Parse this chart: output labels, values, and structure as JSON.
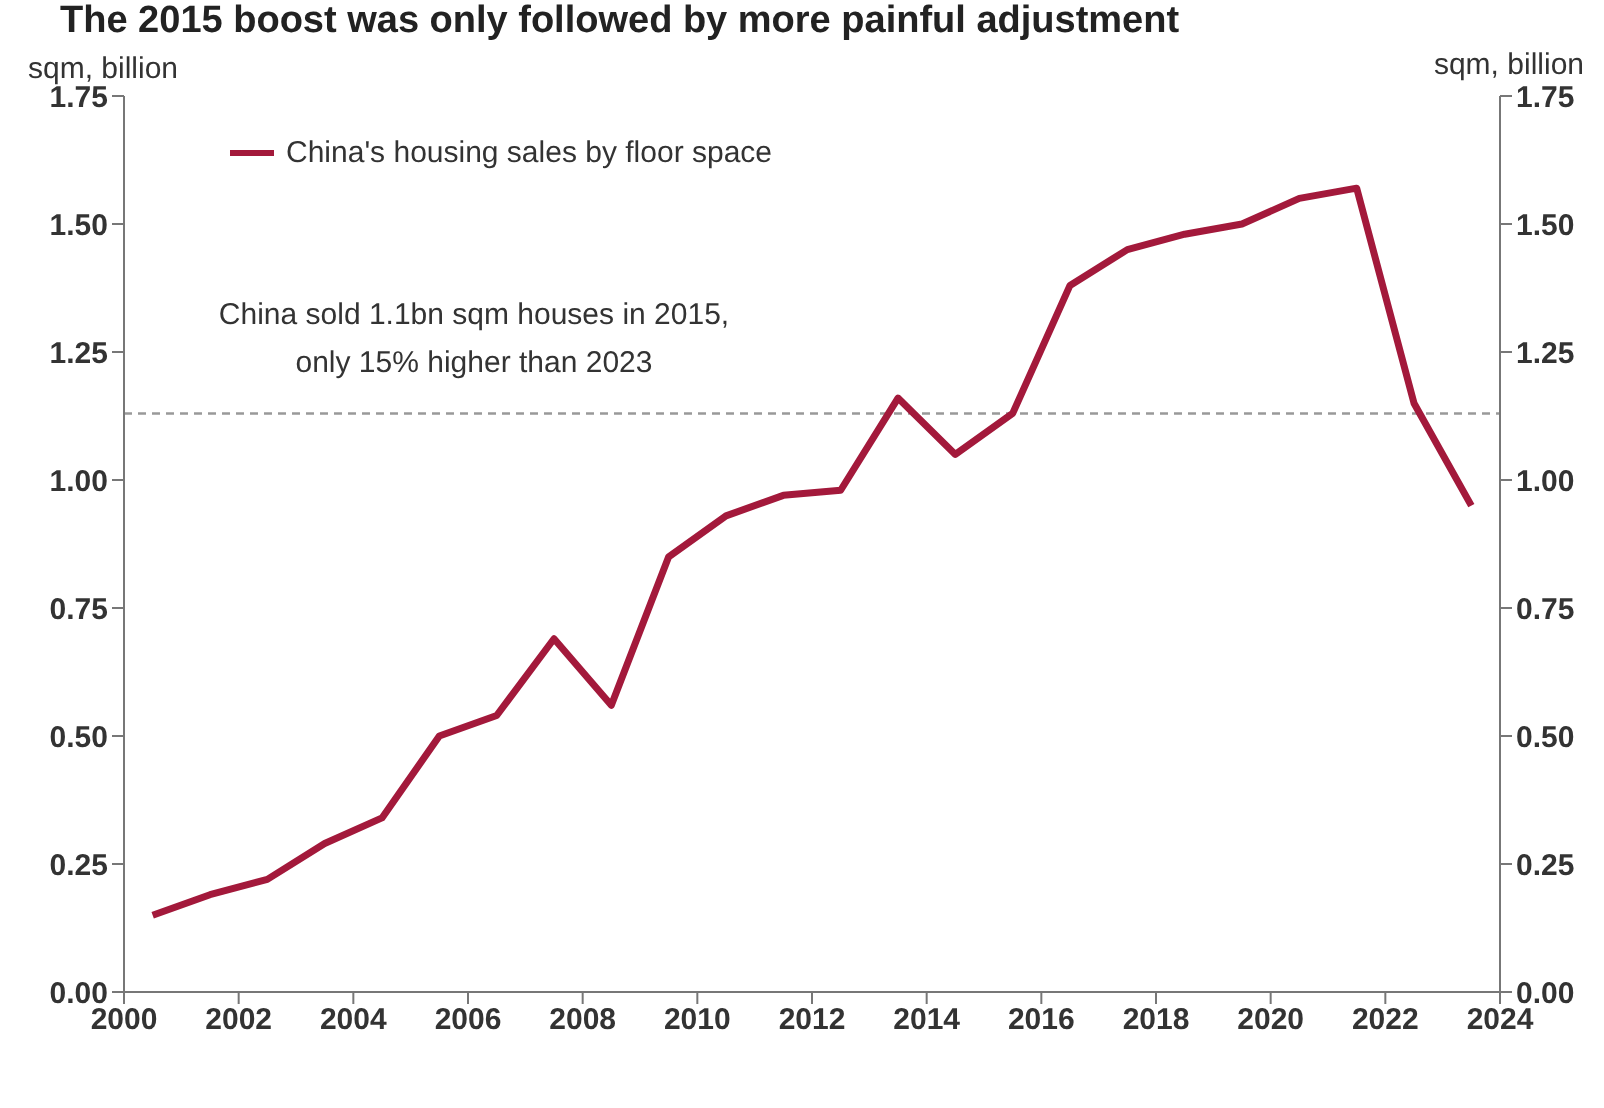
{
  "chart_data": {
    "type": "line",
    "title": "The 2015 boost was only followed by more painful adjustment",
    "ylabel": "sqm, billion",
    "y2label": "sqm, billion",
    "x": [
      2000.5,
      2001.5,
      2002.5,
      2003.5,
      2004.5,
      2005.5,
      2006.5,
      2007.5,
      2008.5,
      2009.5,
      2010.5,
      2011.5,
      2012.5,
      2013.5,
      2014.5,
      2015.5,
      2016.5,
      2017.5,
      2018.5,
      2019.5,
      2020.5,
      2021.5,
      2022.5,
      2023.5
    ],
    "series": [
      {
        "name": "China's housing sales by floor space",
        "color": "#a3193b",
        "values": [
          0.15,
          0.19,
          0.22,
          0.29,
          0.34,
          0.5,
          0.54,
          0.69,
          0.56,
          0.85,
          0.93,
          0.97,
          0.98,
          1.16,
          1.05,
          1.13,
          1.38,
          1.45,
          1.48,
          1.5,
          1.55,
          1.57,
          1.15,
          0.95
        ]
      }
    ],
    "xlim": [
      2000,
      2024
    ],
    "xticks": [
      2000,
      2002,
      2004,
      2006,
      2008,
      2010,
      2012,
      2014,
      2016,
      2018,
      2020,
      2022,
      2024
    ],
    "ylim": [
      0,
      1.75
    ],
    "yticks": [
      {
        "value": 0,
        "label": "0.00"
      },
      {
        "value": 0.25,
        "label": "0.25"
      },
      {
        "value": 0.5,
        "label": "0.50"
      },
      {
        "value": 0.75,
        "label": "0.75"
      },
      {
        "value": 1,
        "label": "1.00"
      },
      {
        "value": 1.25,
        "label": "1.25"
      },
      {
        "value": 1.5,
        "label": "1.50"
      },
      {
        "value": 1.75,
        "label": "1.75"
      }
    ],
    "y2lim": [
      0,
      1.75
    ],
    "y2ticks": [
      {
        "value": 0,
        "label": "0.00"
      },
      {
        "value": 0.25,
        "label": "0.25"
      },
      {
        "value": 0.5,
        "label": "0.50"
      },
      {
        "value": 0.75,
        "label": "0.75"
      },
      {
        "value": 1,
        "label": "1.00"
      },
      {
        "value": 1.25,
        "label": "1.25"
      },
      {
        "value": 1.5,
        "label": "1.50"
      },
      {
        "value": 1.75,
        "label": "1.75"
      }
    ],
    "ref_lines": [
      {
        "axis": "y",
        "value": 1.13,
        "color": "#999999",
        "line_style": "dashed"
      }
    ],
    "annotations": [
      "China sold 1.1bn sqm houses in 2015, only 15% higher than 2023"
    ],
    "legend": "top left",
    "grid": false,
    "marker": "none",
    "line_style": "solid"
  }
}
